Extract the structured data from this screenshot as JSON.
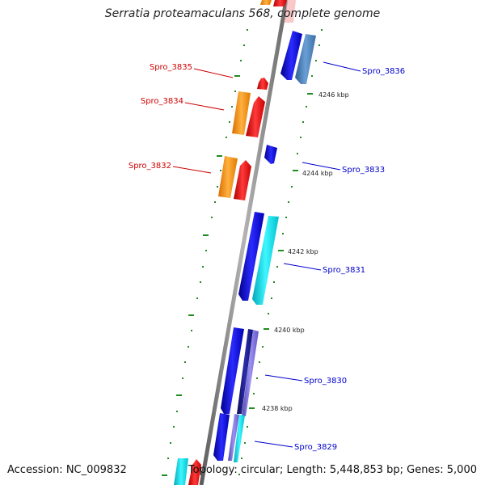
{
  "title": "Serratia proteamaculans 568, complete genome",
  "footer": {
    "accession": "Accession: NC_009832",
    "summary": "Topology: circular; Length: 5,448,853 bp; Genes: 5,000"
  },
  "colors": {
    "forward_label": "#cc0000",
    "reverse_label": "#0000cc",
    "backbone": "#8a8a8a",
    "tick": "#228b22",
    "blue": "#1a1adb",
    "cyan": "#17e0e8",
    "steel": "#4a7fb5",
    "navy": "#1a1a8c",
    "purple": "#7a6fd8",
    "orange": "#ff9411",
    "red": "#f51010"
  },
  "gene_labels": [
    {
      "text": "Spro_3836",
      "strand": "reverse"
    },
    {
      "text": "Spro_3835",
      "strand": "forward"
    },
    {
      "text": "Spro_3834",
      "strand": "forward"
    },
    {
      "text": "Spro_3833",
      "strand": "reverse"
    },
    {
      "text": "Spro_3832",
      "strand": "forward"
    },
    {
      "text": "Spro_3831",
      "strand": "reverse"
    },
    {
      "text": "Spro_3830",
      "strand": "reverse"
    },
    {
      "text": "Spro_3829",
      "strand": "reverse"
    }
  ],
  "kbp_labels": [
    "4246 kbp",
    "4244 kbp",
    "4242 kbp",
    "4240 kbp",
    "4238 kbp"
  ]
}
